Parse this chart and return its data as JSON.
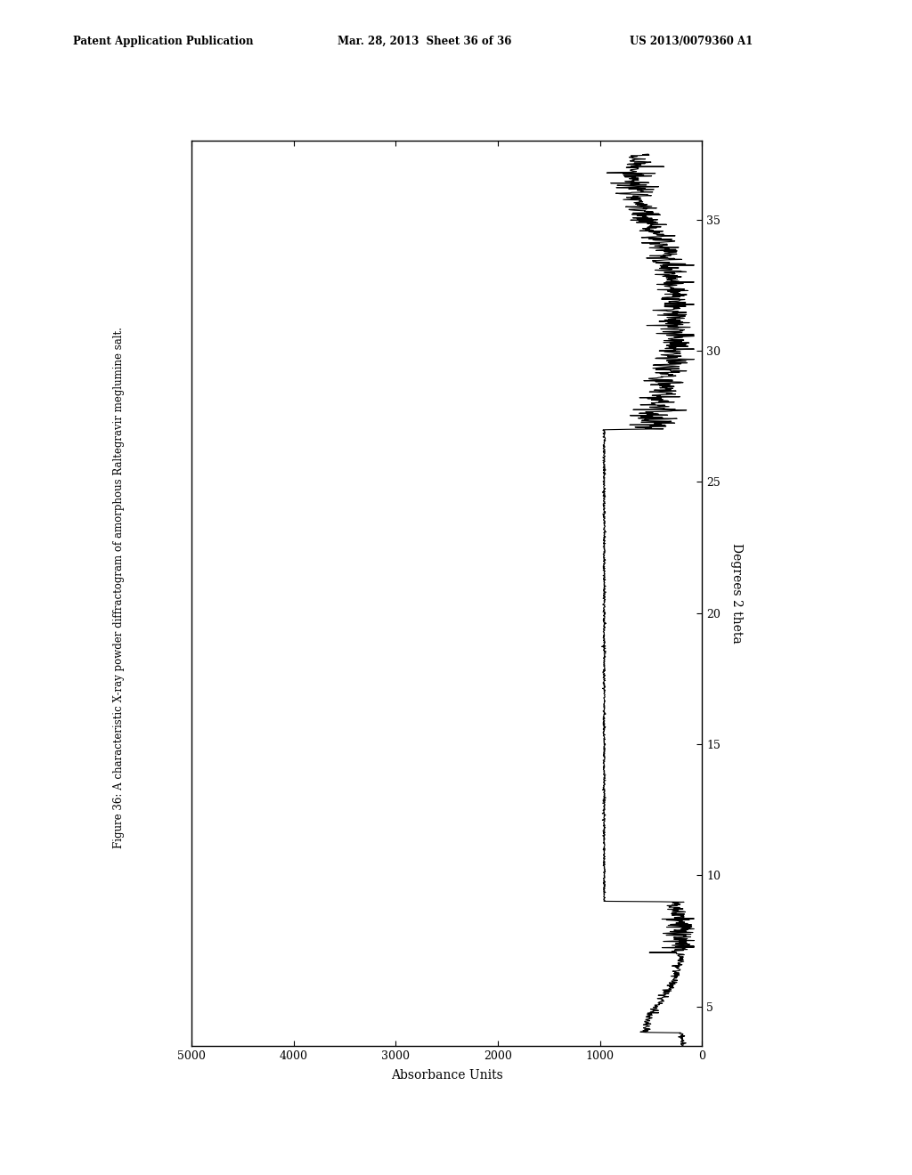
{
  "header_left": "Patent Application Publication",
  "header_mid": "Mar. 28, 2013  Sheet 36 of 36",
  "header_right": "US 2013/0079360 A1",
  "figure_caption": "Figure 36: A characteristic X-ray powder diffractogram of amorphous Raltegravir meglumine salt.",
  "xlabel": "Absorbance Units",
  "ylabel": "Degrees 2 theta",
  "ylim": [
    3.5,
    38.0
  ],
  "yticks": [
    5,
    10,
    15,
    20,
    25,
    30,
    35
  ],
  "xticks": [
    0,
    1000,
    2000,
    3000,
    4000,
    5000
  ],
  "background_color": "#ffffff",
  "line_color": "#000000",
  "line_width": 0.8,
  "flat_region_start": 9.0,
  "flat_region_end": 27.0,
  "flat_value": 960
}
